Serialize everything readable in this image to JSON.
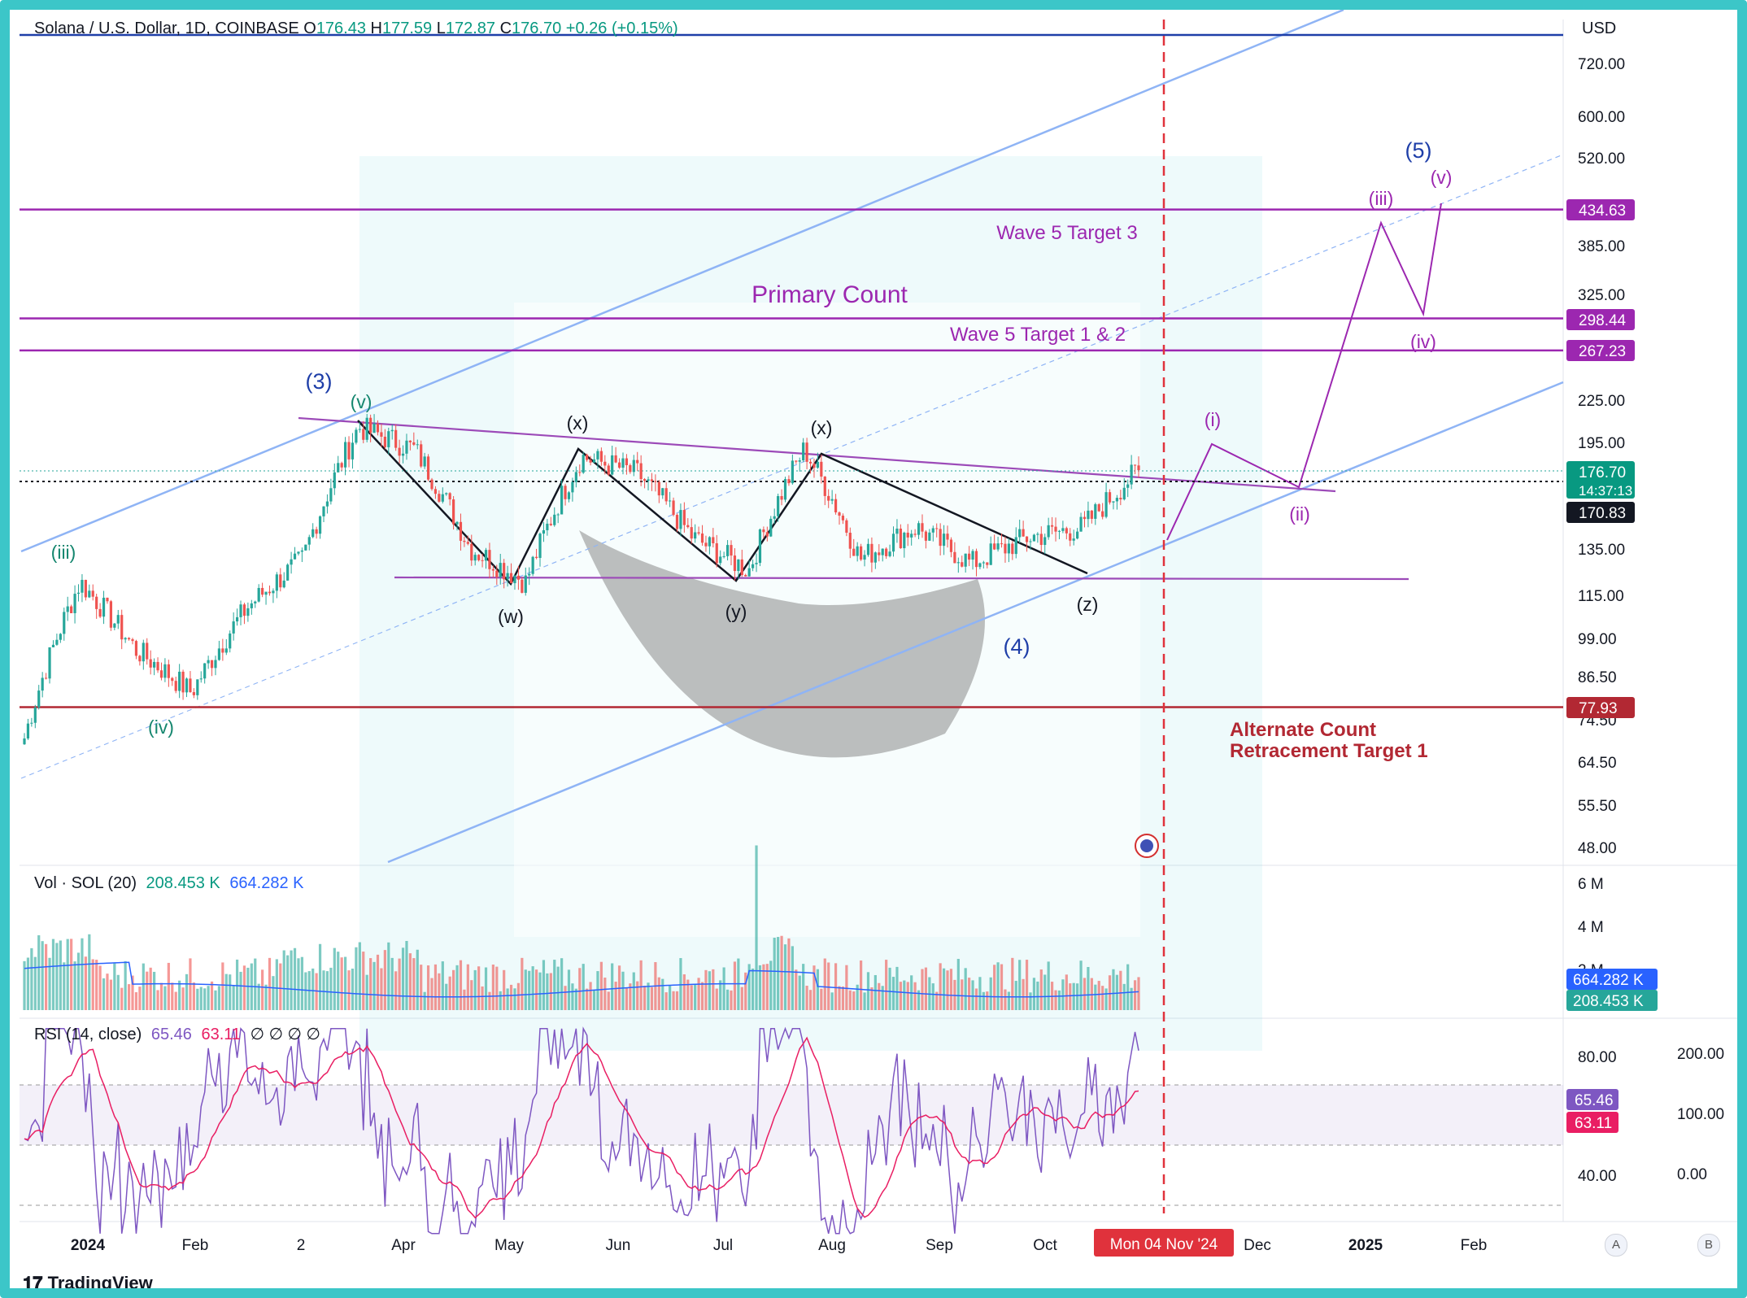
{
  "header": {
    "symbol": "Solana / U.S. Dollar, 1D, COINBASE",
    "o_label": "O",
    "o_val": "176.43",
    "h_label": "H",
    "h_val": "177.59",
    "l_label": "L",
    "l_val": "172.87",
    "c_label": "C",
    "c_val": "176.70",
    "change": "+0.26 (+0.15%)"
  },
  "currency": "USD",
  "volume_legend": {
    "label": "Vol · SOL (20)",
    "v1": "208.453 K",
    "v2": "664.282 K"
  },
  "rsi_legend": {
    "label": "RSI (14, close)",
    "v1": "65.46",
    "v2": "63.11",
    "extra": "∅ ∅ ∅ ∅"
  },
  "footer": {
    "brand": "TradingView",
    "btn_a": "A",
    "btn_b": "B"
  },
  "colors": {
    "up": "#26a69a",
    "down": "#ef5350",
    "channel": "#8fb4f5",
    "purple": "#9c27b0",
    "red_line": "#b22833",
    "rsi": "#7e57c2",
    "rsi_ma": "#e91e63",
    "accent_border": "#3cc6c8"
  },
  "chart_data": {
    "type": "candlestick",
    "title": "Solana / U.S. Dollar, 1D, COINBASE",
    "price_axis": {
      "scale": "log",
      "ticks": [
        "720.00",
        "600.00",
        "520.00",
        "385.00",
        "325.00",
        "225.00",
        "195.00",
        "135.00",
        "115.00",
        "99.00",
        "86.50",
        "74.50",
        "64.50",
        "55.50",
        "48.00"
      ]
    },
    "time_axis": {
      "ticks": [
        "2024",
        "Feb",
        "2",
        "Apr",
        "May",
        "Jun",
        "Jul",
        "Aug",
        "Sep",
        "Oct",
        "Dec",
        "2025",
        "Feb"
      ],
      "cursor_label": "Mon 04 Nov '24"
    },
    "price_labels": [
      {
        "text": "434.63",
        "value": 434.63,
        "color": "#9c27b0"
      },
      {
        "text": "298.44",
        "value": 298.44,
        "color": "#9c27b0"
      },
      {
        "text": "267.23",
        "value": 267.23,
        "color": "#9c27b0"
      },
      {
        "text": "176.70",
        "sub": "14:37:13",
        "value": 176.7,
        "color": "#089981"
      },
      {
        "text": "170.83",
        "value": 170.83,
        "color": "#131722"
      },
      {
        "text": "77.93",
        "value": 77.93,
        "color": "#b22833"
      }
    ],
    "horizontal_levels": [
      {
        "value": 434.63,
        "label": "Wave 5 Target 3",
        "color": "#9c27b0"
      },
      {
        "value": 298.44,
        "label": "",
        "color": "#9c27b0"
      },
      {
        "value": 267.23,
        "label": "Wave 5 Target 1 & 2",
        "color": "#9c27b0"
      },
      {
        "value": 77.93,
        "label": "Alternate Count\nRetracement Target 1",
        "color": "#b22833"
      }
    ],
    "annotations": {
      "primary": "Primary Count",
      "wave3": "(3)",
      "wave4": "(4)",
      "wave5": "(5)",
      "iii_old": "(iii)",
      "iv_old": "(iv)",
      "v_old": "(v)",
      "w": "(w)",
      "x1": "(x)",
      "y": "(y)",
      "x2": "(x)",
      "z": "(z)",
      "i": "(i)",
      "ii": "(ii)",
      "iii": "(iii)",
      "iv": "(iv)",
      "v": "(v)",
      "alt1": "Alternate Count",
      "alt2": "Retracement Target 1"
    },
    "price_path_approx": [
      {
        "x": "Dec '23",
        "y": 70
      },
      {
        "x": "late Dec '23",
        "y": 120
      },
      {
        "x": "mid Jan",
        "y": 95
      },
      {
        "x": "late Jan",
        "y": 82
      },
      {
        "x": "mid Feb",
        "y": 110
      },
      {
        "x": "early Mar",
        "y": 130
      },
      {
        "x": "mid Mar",
        "y": 205
      },
      {
        "x": "late Mar",
        "y": 190
      },
      {
        "x": "mid Apr",
        "y": 135
      },
      {
        "x": "late Apr",
        "y": 120
      },
      {
        "x": "mid May",
        "y": 185
      },
      {
        "x": "late May",
        "y": 175
      },
      {
        "x": "mid Jun",
        "y": 140
      },
      {
        "x": "early Jul",
        "y": 125
      },
      {
        "x": "late Jul",
        "y": 190
      },
      {
        "x": "early Aug",
        "y": 130
      },
      {
        "x": "mid Aug",
        "y": 145
      },
      {
        "x": "early Sep",
        "y": 128
      },
      {
        "x": "mid Sep",
        "y": 140
      },
      {
        "x": "early Oct",
        "y": 145
      },
      {
        "x": "late Oct",
        "y": 176.7
      }
    ],
    "volume_axis": {
      "ticks": [
        "6 M",
        "4 M",
        "2 M"
      ]
    },
    "volume_labels": [
      {
        "text": "664.282 K",
        "color": "#2962ff"
      },
      {
        "text": "208.453 K",
        "color": "#26a69a"
      }
    ],
    "rsi_axis": {
      "ticks": [
        "80.00",
        "40.00"
      ],
      "right_ticks": [
        "200.00",
        "100.00",
        "0.00"
      ]
    },
    "rsi_labels": [
      {
        "text": "65.46",
        "color": "#7e57c2"
      },
      {
        "text": "63.11",
        "color": "#e91e63"
      }
    ]
  }
}
